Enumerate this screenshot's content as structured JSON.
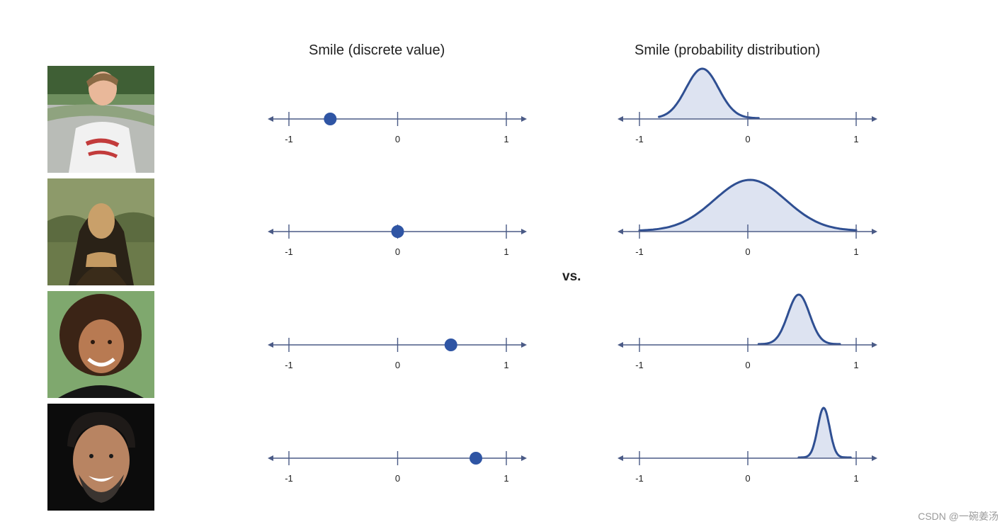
{
  "titles": {
    "left": "Smile (discrete value)",
    "right": "Smile (probability distribution)"
  },
  "vs_label": "vs.",
  "watermark": "CSDN @一碗姜汤",
  "colors": {
    "axis": "#4a5a86",
    "point": "#2f55a4",
    "curve": "#2f4f92",
    "fill": "#dde3f1"
  },
  "faces": [
    "boy-frowning",
    "mona-lisa",
    "girl-smiling",
    "man-laughing"
  ],
  "chart_data": [
    {
      "type": "scatter",
      "title": "Smile (discrete value)",
      "xlim": [
        -1,
        1
      ],
      "x_ticks": [
        "-1",
        "0",
        "1"
      ],
      "rows": [
        {
          "value": -0.62
        },
        {
          "value": 0.0
        },
        {
          "value": 0.49
        },
        {
          "value": 0.72
        }
      ]
    },
    {
      "type": "area",
      "title": "Smile (probability distribution)",
      "xlim": [
        -1,
        1
      ],
      "x_ticks": [
        "-1",
        "0",
        "1"
      ],
      "rows": [
        {
          "mean": -0.42,
          "sd": 0.15,
          "range": [
            -0.82,
            0.1
          ]
        },
        {
          "mean": 0.02,
          "sd": 0.33,
          "range": [
            -1,
            1
          ]
        },
        {
          "mean": 0.47,
          "sd": 0.1,
          "range": [
            0.1,
            0.85
          ]
        },
        {
          "mean": 0.7,
          "sd": 0.055,
          "range": [
            0.47,
            0.95
          ]
        }
      ]
    }
  ]
}
